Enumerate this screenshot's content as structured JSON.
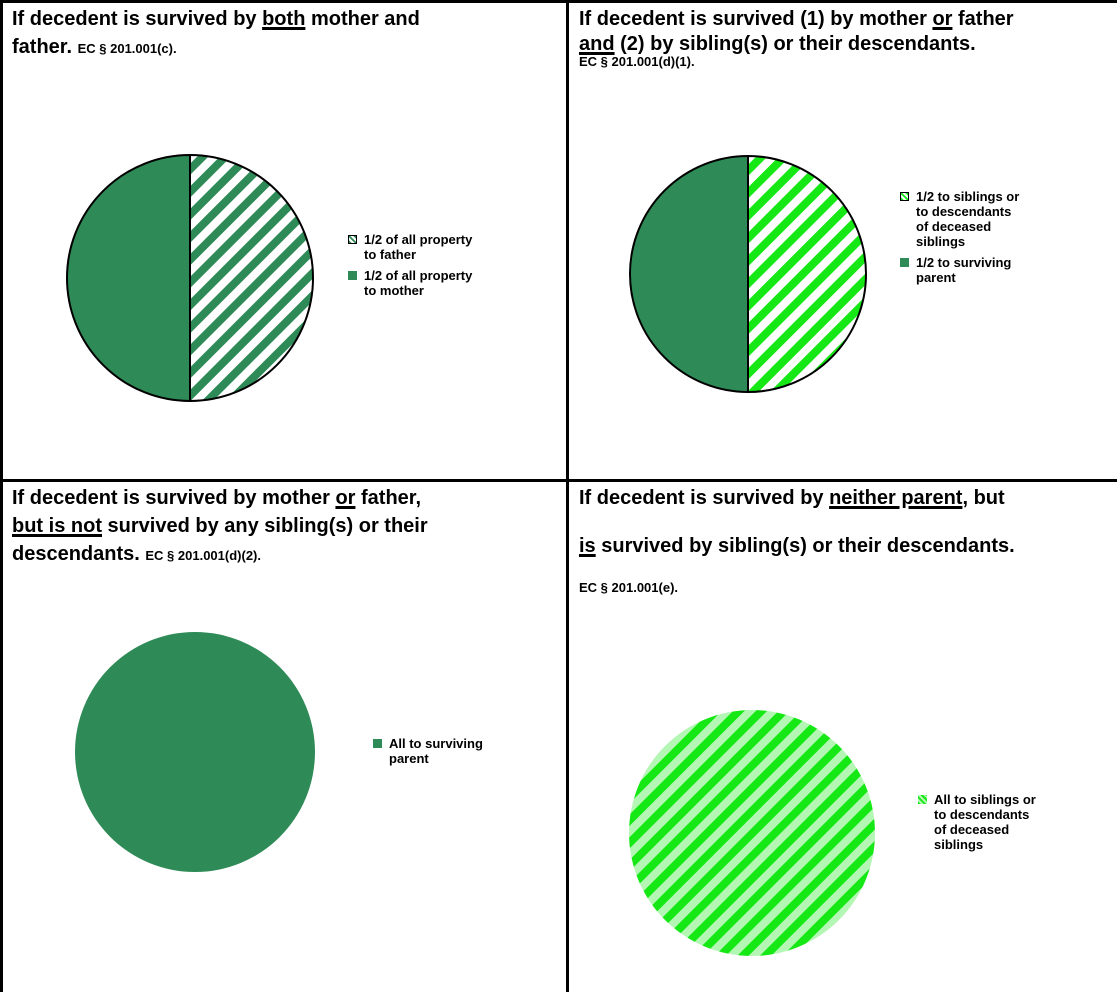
{
  "colors": {
    "dark_green": "#2e8b57",
    "bright_green": "#16e816",
    "light_green": "#b4f7b4",
    "border": "#000000"
  },
  "panels": [
    {
      "title_parts": [
        {
          "text": "If decedent is survived by ",
          "u": false
        },
        {
          "text": "both",
          "u": true
        },
        {
          "text": " mother and",
          "u": false
        }
      ],
      "title_line2_parts": [
        {
          "text": "father.",
          "u": false
        }
      ],
      "ref": "EC § 201.001(c).",
      "chart_data": {
        "type": "pie",
        "slices": [
          {
            "label": "1/2 of all property to father",
            "value": 0.5,
            "fill": "hatch-dark"
          },
          {
            "label": "1/2 of all property to mother",
            "value": 0.5,
            "fill": "solid-dark"
          }
        ]
      },
      "legend": [
        {
          "lines": [
            "1/2 of all property",
            "to father"
          ],
          "swatch": "hatch-dark"
        },
        {
          "lines": [
            "1/2 of all property",
            "to mother"
          ],
          "swatch": "solid-dark"
        }
      ]
    },
    {
      "title_parts": [
        {
          "text": "If decedent is survived (1) by mother ",
          "u": false
        },
        {
          "text": "or",
          "u": true
        },
        {
          "text": " father",
          "u": false
        }
      ],
      "title_line2_parts": [
        {
          "text": "and",
          "u": true
        },
        {
          "text": " (2) by sibling(s) or their descendants.",
          "u": false
        }
      ],
      "ref": "EC § 201.001(d)(1).",
      "chart_data": {
        "type": "pie",
        "slices": [
          {
            "label": "1/2 to siblings or to descendants of deceased siblings",
            "value": 0.5,
            "fill": "hatch-bright"
          },
          {
            "label": "1/2 to surviving parent",
            "value": 0.5,
            "fill": "solid-dark"
          }
        ]
      },
      "legend": [
        {
          "lines": [
            "1/2 to siblings or",
            "to descendants",
            "of deceased",
            "siblings"
          ],
          "swatch": "hatch-bright"
        },
        {
          "lines": [
            "1/2 to surviving",
            "parent"
          ],
          "swatch": "solid-dark"
        }
      ]
    },
    {
      "title_parts": [
        {
          "text": "If decedent is survived by mother ",
          "u": false
        },
        {
          "text": "or",
          "u": true
        },
        {
          "text": " father,",
          "u": false
        }
      ],
      "title_line2_parts": [
        {
          "text": "but is not",
          "u": true
        },
        {
          "text": " survived by any sibling(s) or their",
          "u": false
        }
      ],
      "title_line3_parts": [
        {
          "text": "descendants.",
          "u": false
        }
      ],
      "ref": "EC § 201.001(d)(2).",
      "chart_data": {
        "type": "pie",
        "slices": [
          {
            "label": "All to surviving parent",
            "value": 1,
            "fill": "solid-dark"
          }
        ]
      },
      "legend": [
        {
          "lines": [
            "All to surviving",
            "parent"
          ],
          "swatch": "solid-dark"
        }
      ]
    },
    {
      "title_parts": [
        {
          "text": "If decedent is survived by ",
          "u": false
        },
        {
          "text": "neither parent",
          "u": true
        },
        {
          "text": ", but",
          "u": false
        }
      ],
      "title_line2_parts": [
        {
          "text": "is",
          "u": true
        },
        {
          "text": " survived by sibling(s) or their descendants.",
          "u": false
        }
      ],
      "ref": "EC § 201.001(e).",
      "chart_data": {
        "type": "pie",
        "slices": [
          {
            "label": "All to siblings or to descendants of deceased siblings",
            "value": 1,
            "fill": "hatch-light"
          }
        ]
      },
      "legend": [
        {
          "lines": [
            "All to siblings or",
            "to descendants",
            "of deceased",
            "siblings"
          ],
          "swatch": "hatch-light"
        }
      ]
    }
  ]
}
